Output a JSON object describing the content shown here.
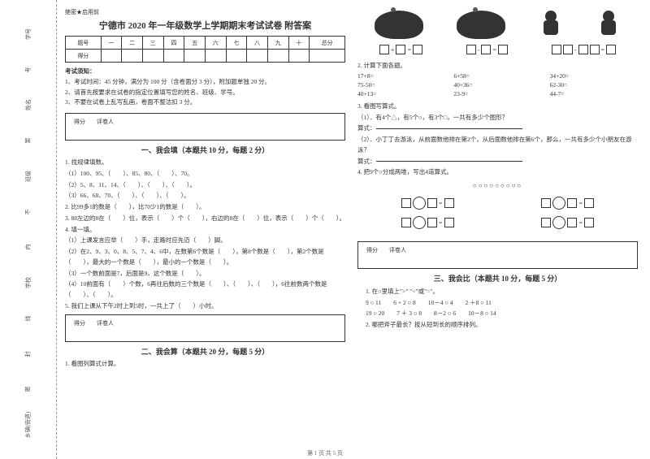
{
  "left_labels": {
    "a": "学号",
    "b": "姓名",
    "c": "班级",
    "d": "学校",
    "e": "乡镇(街道)",
    "hint1": "考",
    "hint2": "案",
    "hint3": "不",
    "hint4": "内",
    "hint5": "线",
    "hint6": "封",
    "hint7": "密"
  },
  "header": {
    "secret": "绝密★启用前",
    "title": "宁德市 2020 年一年级数学上学期期末考试试卷  附答案"
  },
  "score_headers": [
    "题号",
    "一",
    "二",
    "三",
    "四",
    "五",
    "六",
    "七",
    "八",
    "九",
    "十",
    "总分"
  ],
  "score_row": "得分",
  "rules": {
    "title": "考试须知：",
    "r1": "1、考试时间：45 分钟，满分为 100 分（含卷面分 3 分），附加题单独 20 分。",
    "r2": "2、请首先按要求在试卷的指定位置填写您的姓名、班级、学号。",
    "r3": "3、不要在试卷上乱写乱画，卷面不整洁扣 3 分。"
  },
  "scorebox": {
    "a": "得分",
    "b": "评卷人"
  },
  "sec1": {
    "title": "一、我会填（本题共 10 分，每题 2 分）",
    "q1": "1. 找规律填数。",
    "q1a": "（1）100、95、（　　）、85、80、（　　）、70。",
    "q1b": "（2）5、8、11、14、（　　）、（　　）、（　　）。",
    "q1c": "（3）66、68、70、（　　）、（　　）、（　　）。",
    "q2": "2. 比99多1的数是（　　），比70少1的数是（　　）。",
    "q3": "3. 88左边的8在（　　）位，表示（　　）个（　　），右边的8在（　　）位，表示（　　）个（　　）。",
    "q4": "4. 填一填。",
    "q4a": "（1）上课发言应举（　　）手，走路时应先迈（　　）脚。",
    "q4b": "（2）在2、9、3、0、8、5、7、4、6中，左数第6个数是（　　），第8个数是（　　），第2个数是（　　），最大的一个数是（　　），最小的一个数是（　　）。",
    "q4c": "（3）一个数前面是7，后面是9，这个数是（　　）。",
    "q4d": "（4）10前面有（　　）个数，6再往后数的三个数是（　　）、（　　）、（　　），6往前数两个数是（　　）、（　　）。",
    "q5": "5. 我们上课从下午2时上到5时，一共上了（　　）小时。"
  },
  "sec2": {
    "title": "二、我会算（本题共 20 分，每题 5 分）",
    "q1": "1. 看图列算式计算。",
    "q2": "2. 计算下面各题。",
    "calc": [
      "17+8=",
      "6+58=",
      "34+20=",
      "75-50=",
      "40+36=",
      "62-30=",
      "40+13=",
      "23-9=",
      "44-7="
    ],
    "q3": "3. 看图写算式。",
    "q3a": "（1）．有4个△，有5个○，有3个□，一共有多少个图形？",
    "q3alabel": "算式：",
    "q3b": "（2）．小丁丁去游泳，从前面数他排在第2个，从后面数他排在第6个，那么，一共有多少个小朋友在游泳？",
    "q3blabel": "算式：",
    "q4": "4. 把9个○分成两堆，写出4道算式。",
    "circles": "○○○○○○○○○"
  },
  "sec3": {
    "title": "三、我会比（本题共 10 分，每题 5 分）",
    "q1": "1. 在○里填上\">\" \"<\"或\"=\"。",
    "row1": "9 ○ 11　　6 + 2 ○ 8　　10－4 ○ 4　　2 ＋8 ○ 11",
    "row2": "19 ○ 20　　7 ＋ 3 ○ 8　　8－2 ○ 6　　10－8 ○ 14",
    "q2": "2. 哪把斧子最长？按从短到长的顺序排列。"
  },
  "footer": "第 1 页 共 5 页"
}
